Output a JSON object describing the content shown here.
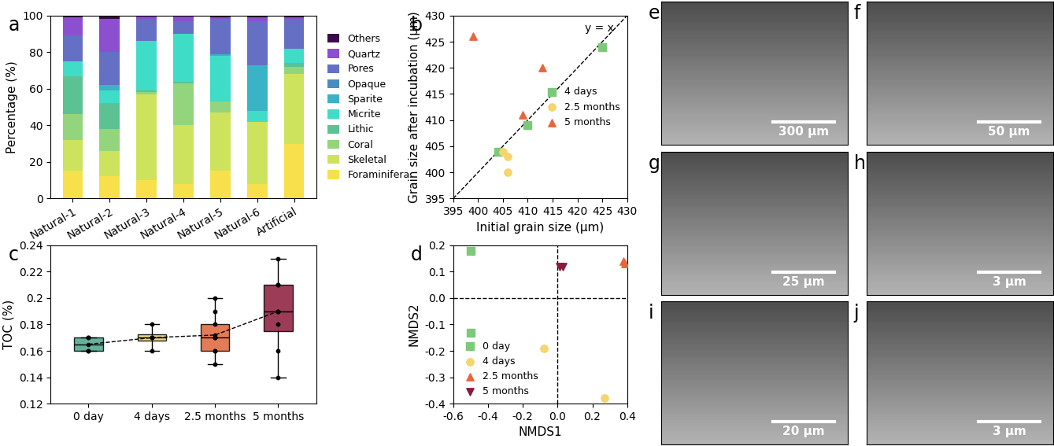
{
  "chart_data": [
    {
      "panel_label": "a",
      "type": "bar",
      "stacked": true,
      "legend": "center left",
      "ylabel": "Percentage (%)",
      "categories": [
        "Natural-1",
        "Natural-2",
        "Natural-3",
        "Natural-4",
        "Natural-5",
        "Natural-6",
        "Artificial"
      ],
      "ylim": [
        0,
        100
      ],
      "yticks": [
        0,
        20,
        40,
        60,
        80,
        100
      ],
      "series": [
        {
          "name": "Foraminifera",
          "color": "#f7e04b",
          "values": [
            15,
            12,
            10,
            8,
            15,
            8,
            30
          ]
        },
        {
          "name": "Skeletal",
          "color": "#cde35e",
          "values": [
            17,
            14,
            47,
            32,
            32,
            34,
            38
          ]
        },
        {
          "name": "Coral",
          "color": "#93d57c",
          "values": [
            14,
            12,
            1,
            23,
            6,
            0,
            4
          ]
        },
        {
          "name": "Lithic",
          "color": "#5cc293",
          "values": [
            21,
            14,
            1,
            1,
            0,
            0,
            2
          ]
        },
        {
          "name": "Micrite",
          "color": "#3fdcc8",
          "values": [
            8,
            7,
            27,
            26,
            25,
            6,
            8
          ]
        },
        {
          "name": "Sparite",
          "color": "#3ab3c7",
          "values": [
            0,
            3,
            0,
            0,
            1,
            25,
            0
          ]
        },
        {
          "name": "Opaque",
          "color": "#4a8cc0",
          "values": [
            0,
            0,
            0,
            0,
            0,
            0,
            0
          ]
        },
        {
          "name": "Pores",
          "color": "#6570c4",
          "values": [
            14,
            18,
            12,
            7,
            19,
            24,
            16
          ]
        },
        {
          "name": "Quartz",
          "color": "#8b4fd0",
          "values": [
            10,
            18,
            1.5,
            2.5,
            1,
            2,
            1
          ]
        },
        {
          "name": "Others",
          "color": "#3a0a4a",
          "values": [
            1,
            2,
            0.5,
            0.5,
            1,
            1,
            1
          ]
        }
      ]
    },
    {
      "panel_label": "b",
      "type": "scatter",
      "legend": "center right",
      "xlabel": "Initial grain size (μm)",
      "ylabel": "Grain size after incubation (μm)",
      "annotations": [
        "y = x"
      ],
      "xlim": [
        395,
        430
      ],
      "xticks": [
        395,
        400,
        405,
        410,
        415,
        420,
        425,
        430
      ],
      "ylim": [
        395,
        430
      ],
      "yticks": [
        395,
        400,
        405,
        410,
        415,
        420,
        425,
        430
      ],
      "series": [
        {
          "name": "4 days",
          "color": "#7dc97a",
          "marker": "square",
          "x": [
            404,
            410,
            425
          ],
          "values": [
            404,
            409,
            424
          ]
        },
        {
          "name": "2.5 months",
          "color": "#f5d56e",
          "marker": "circle",
          "x": [
            405,
            406,
            406
          ],
          "values": [
            404,
            403,
            400
          ]
        },
        {
          "name": "5 months",
          "color": "#e8663d",
          "marker": "triangle",
          "x": [
            399,
            409,
            413
          ],
          "values": [
            426,
            411,
            420
          ]
        }
      ]
    },
    {
      "panel_label": "c",
      "type": "box",
      "ylabel": "TOC (%)",
      "categories": [
        "0 day",
        "4 days",
        "2.5 months",
        "5 months"
      ],
      "colors": [
        "#4aa58a",
        "#e8d56a",
        "#e0643a",
        "#8b1a3a"
      ],
      "values": [
        [
          0.16,
          0.16,
          0.17,
          0.17
        ],
        [
          0.16,
          0.17,
          0.17,
          0.18
        ],
        [
          0.15,
          0.16,
          0.16,
          0.17,
          0.17,
          0.17,
          0.18,
          0.19,
          0.2
        ],
        [
          0.14,
          0.16,
          0.18,
          0.19,
          0.19,
          0.21,
          0.21,
          0.23
        ]
      ],
      "means": [
        0.165,
        0.17,
        0.172,
        0.19
      ],
      "ylim": [
        0.12,
        0.24
      ],
      "yticks": [
        0.12,
        0.14,
        0.16,
        0.18,
        0.2,
        0.22,
        0.24
      ]
    },
    {
      "panel_label": "d",
      "type": "scatter",
      "legend": "lower left",
      "xlabel": "NMDS1",
      "ylabel": "NMDS2",
      "hlines": [
        0
      ],
      "vlines": [
        0
      ],
      "xlim": [
        -0.6,
        0.4
      ],
      "xticks": [
        -0.6,
        -0.4,
        -0.2,
        0.0,
        0.2,
        0.4
      ],
      "ylim": [
        -0.4,
        0.2
      ],
      "yticks": [
        -0.4,
        -0.3,
        -0.2,
        -0.1,
        0.0,
        0.1,
        0.2
      ],
      "series": [
        {
          "name": "0 day",
          "color": "#7dc97a",
          "marker": "square",
          "x": [
            -0.5,
            -0.5
          ],
          "values": [
            0.18,
            -0.13
          ]
        },
        {
          "name": "4 days",
          "color": "#f5d56e",
          "marker": "circle",
          "x": [
            -0.08,
            0.27
          ],
          "values": [
            -0.19,
            -0.38
          ]
        },
        {
          "name": "2.5 months",
          "color": "#e8663d",
          "marker": "triangle",
          "x": [
            0.38,
            0.39
          ],
          "values": [
            0.14,
            0.13
          ]
        },
        {
          "name": "5 months",
          "color": "#8b1a3a",
          "marker": "triangle_down",
          "x": [
            0.01,
            0.03
          ],
          "values": [
            0.12,
            0.12
          ]
        }
      ]
    }
  ],
  "images": [
    {
      "panel_label": "e",
      "scale_bar": "300 μm"
    },
    {
      "panel_label": "f",
      "scale_bar": "50 μm"
    },
    {
      "panel_label": "g",
      "scale_bar": "25 μm"
    },
    {
      "panel_label": "h",
      "scale_bar": "3 μm"
    },
    {
      "panel_label": "i",
      "scale_bar": "20 μm"
    },
    {
      "panel_label": "j",
      "scale_bar": "3 μm"
    }
  ]
}
